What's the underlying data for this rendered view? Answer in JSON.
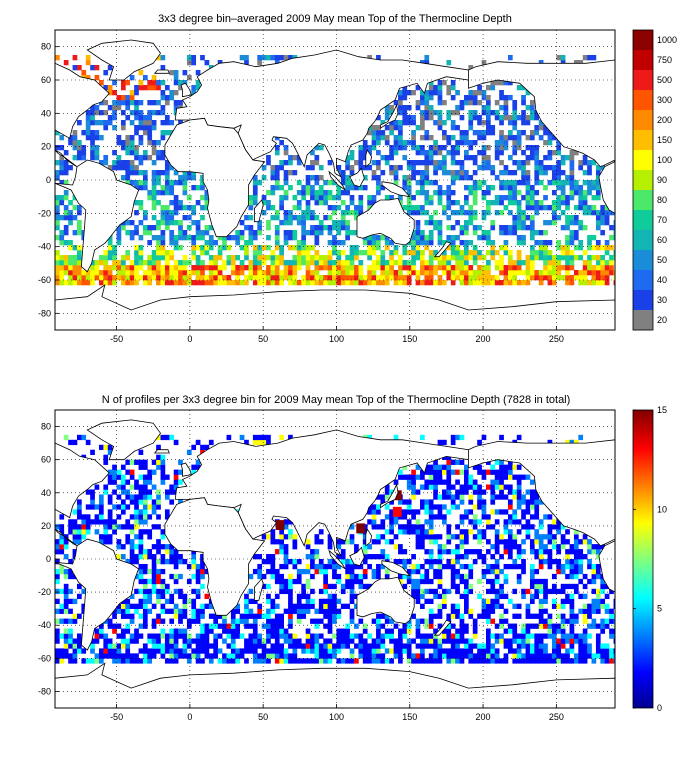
{
  "chart_data": [
    {
      "type": "heatmap",
      "title": "3x3 degree bin–averaged 2009 May mean Top of the Thermocline Depth",
      "xlim": [
        -92,
        290
      ],
      "ylim": [
        -90,
        90
      ],
      "xticks": [
        -50,
        0,
        50,
        100,
        150,
        200,
        250
      ],
      "yticks": [
        80,
        60,
        40,
        20,
        0,
        -20,
        -40,
        -60,
        -80
      ],
      "grid": true,
      "colorbar": {
        "orientation": "vertical",
        "levels": [
          "1000",
          "750",
          "500",
          "300",
          "200",
          "150",
          "100",
          "90",
          "80",
          "70",
          "60",
          "50",
          "40",
          "30",
          "20"
        ],
        "colors": [
          "#8b0000",
          "#c00000",
          "#ee1a1a",
          "#ff5500",
          "#ff8a00",
          "#ffbf00",
          "#ffff00",
          "#b4f000",
          "#4ce86a",
          "#10cc9a",
          "#12b4b4",
          "#1a8cd8",
          "#1e6af0",
          "#1a40e8",
          "#808080"
        ]
      },
      "regions": [
        {
          "lon": [
            -92,
            -20
          ],
          "lat": [
            0,
            50
          ],
          "band": "low"
        },
        {
          "lon": [
            -62,
            -20
          ],
          "lat": [
            50,
            65
          ],
          "band": "high"
        },
        {
          "lon": [
            120,
            290
          ],
          "lat": [
            0,
            55
          ],
          "band": "low"
        },
        {
          "lon": [
            -92,
            290
          ],
          "lat": [
            -40,
            0
          ],
          "band": "mid"
        },
        {
          "lon": [
            -92,
            290
          ],
          "lat": [
            -62,
            -40
          ],
          "band": "deep"
        }
      ]
    },
    {
      "type": "heatmap",
      "title": "N of profiles per 3x3 degree bin for 2009 May mean Top of the Thermocline Depth  (7828 in total)",
      "xlim": [
        -92,
        290
      ],
      "ylim": [
        -90,
        90
      ],
      "xticks": [
        -50,
        0,
        50,
        100,
        150,
        200,
        250
      ],
      "yticks": [
        80,
        60,
        40,
        20,
        0,
        -20,
        -40,
        -60,
        -80
      ],
      "grid": true,
      "colorbar": {
        "orientation": "vertical",
        "range": [
          0,
          15
        ],
        "ticks": [
          0,
          5,
          10,
          15
        ],
        "colors": [
          "#00008f",
          "#0000ff",
          "#0080ff",
          "#00ffff",
          "#80ff80",
          "#ffff00",
          "#ff8000",
          "#ff0000",
          "#800000"
        ]
      },
      "hotspots": [
        {
          "lon": 140,
          "lat": 40,
          "value": 14
        },
        {
          "lon": 115,
          "lat": 20,
          "value": 14
        },
        {
          "lon": 60,
          "lat": 22,
          "value": 15
        },
        {
          "lon": 140,
          "lat": 30,
          "value": 12
        }
      ]
    }
  ]
}
